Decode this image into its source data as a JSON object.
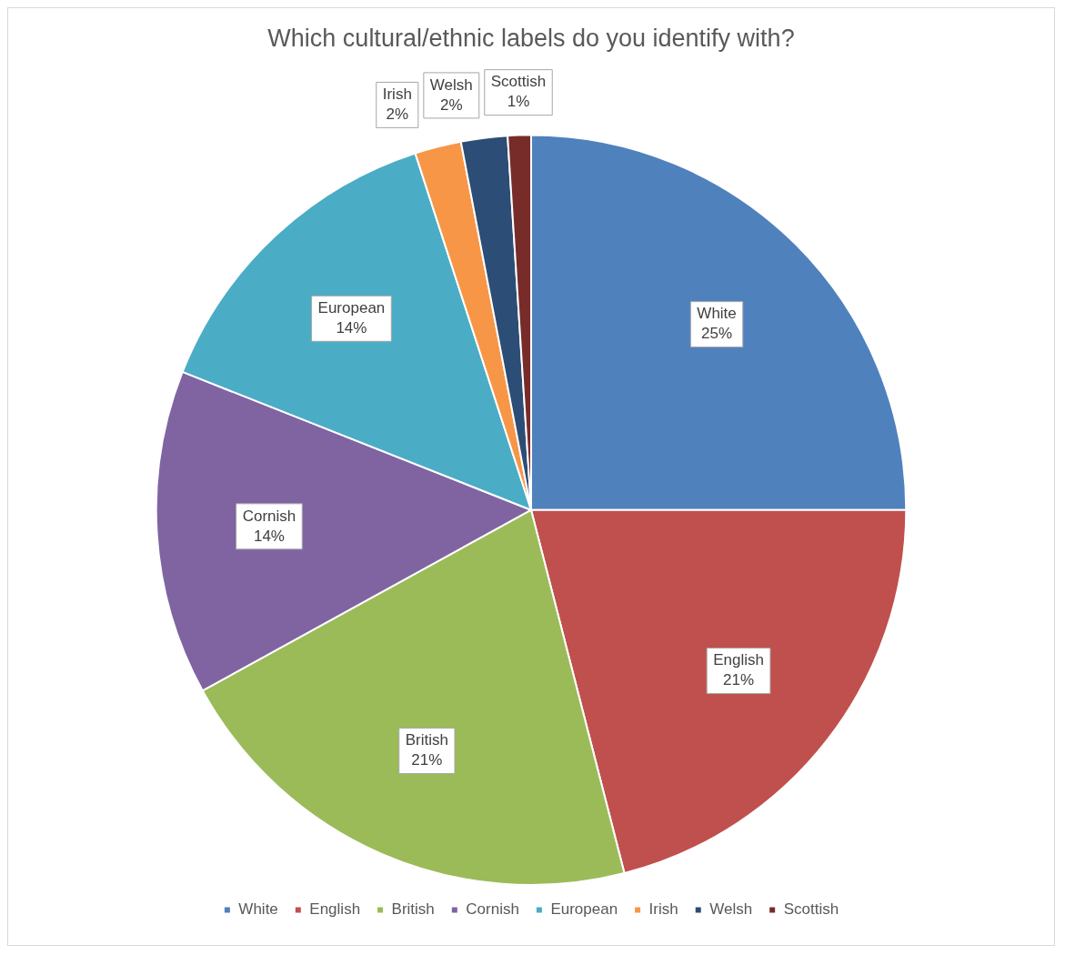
{
  "chart_data": {
    "type": "pie",
    "title": "Which cultural/ethnic labels do you identify with?",
    "categories": [
      "White",
      "English",
      "British",
      "Cornish",
      "European",
      "Irish",
      "Welsh",
      "Scottish"
    ],
    "values": [
      25,
      21,
      21,
      14,
      14,
      2,
      2,
      1
    ],
    "value_labels": [
      "25%",
      "21%",
      "21%",
      "14%",
      "14%",
      "2%",
      "2%",
      "1%"
    ],
    "colors": [
      "#4f81bd",
      "#c0504d",
      "#9bbb59",
      "#8064a2",
      "#4bacc6",
      "#f79646",
      "#2c4d75",
      "#772c2a"
    ],
    "legend": "bottom"
  }
}
